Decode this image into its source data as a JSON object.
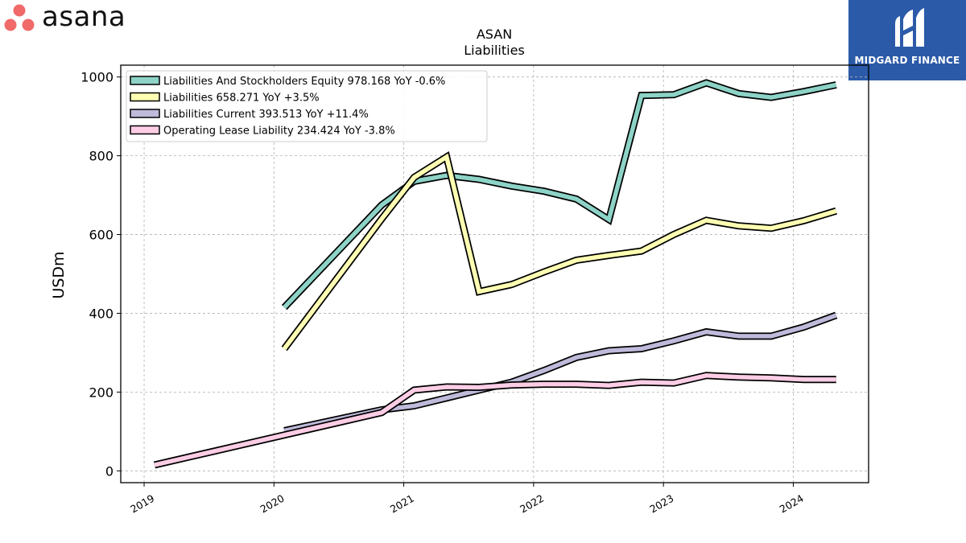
{
  "branding": {
    "left_logo_text": "asana",
    "right_logo_text": "MIDGARD FINANCE",
    "left_logo_color": "#f06a6a",
    "right_logo_bg": "#2b5aa8"
  },
  "chart_data": {
    "type": "line",
    "title": "ASAN",
    "subtitle": "Liabilities",
    "ylabel": "USDm",
    "xlabel": "",
    "ylim": [
      -30,
      1030
    ],
    "xlim": [
      2018.82,
      2024.58
    ],
    "x_ticks": [
      2019,
      2020,
      2021,
      2022,
      2023,
      2024
    ],
    "y_ticks": [
      0,
      200,
      400,
      600,
      800,
      1000
    ],
    "grid": true,
    "legend_position": "top-left",
    "series": [
      {
        "name": "Liabilities And Stockholders Equity",
        "legend": "Liabilities And Stockholders Equity  978.168 YoY -0.6%",
        "color": "#8dd3c7",
        "x": [
          2020.08,
          2020.83,
          2021.08,
          2021.33,
          2021.58,
          2021.83,
          2022.08,
          2022.33,
          2022.58,
          2022.83,
          2023.08,
          2023.33,
          2023.58,
          2023.83,
          2024.08,
          2024.33
        ],
        "y": [
          415,
          675,
          735,
          750,
          740,
          723,
          710,
          690,
          638,
          953,
          955,
          985,
          958,
          948,
          963,
          980
        ]
      },
      {
        "name": "Liabilities",
        "legend": "Liabilities  658.271 YoY +3.5%",
        "color": "#ffffb3",
        "x": [
          2020.08,
          2020.83,
          2021.08,
          2021.33,
          2021.58,
          2021.83,
          2022.08,
          2022.33,
          2022.58,
          2022.83,
          2023.08,
          2023.33,
          2023.58,
          2023.83,
          2024.08,
          2024.33
        ],
        "y": [
          310,
          640,
          745,
          797,
          455,
          473,
          505,
          535,
          547,
          558,
          600,
          636,
          622,
          616,
          635,
          660
        ]
      },
      {
        "name": "Liabilities Current",
        "legend": "Liabilities Current  393.513 YoY +11.4%",
        "color": "#bebada",
        "x": [
          2020.08,
          2020.83,
          2021.08,
          2021.33,
          2021.58,
          2021.83,
          2022.08,
          2022.33,
          2022.58,
          2022.83,
          2023.08,
          2023.33,
          2023.58,
          2023.83,
          2024.08,
          2024.33
        ],
        "y": [
          102,
          155,
          165,
          185,
          205,
          225,
          255,
          288,
          305,
          310,
          330,
          353,
          342,
          342,
          365,
          395
        ]
      },
      {
        "name": "Operating Lease Liability",
        "legend": "Operating Lease Liability  234.424 YoY -3.8%",
        "color": "#fccde5",
        "x": [
          2019.08,
          2020.83,
          2021.08,
          2021.33,
          2021.58,
          2021.83,
          2022.08,
          2022.33,
          2022.58,
          2022.83,
          2023.08,
          2023.33,
          2023.58,
          2023.83,
          2024.08,
          2024.33
        ],
        "y": [
          15,
          148,
          205,
          213,
          212,
          218,
          220,
          220,
          217,
          225,
          223,
          242,
          238,
          236,
          232,
          232
        ]
      }
    ]
  }
}
